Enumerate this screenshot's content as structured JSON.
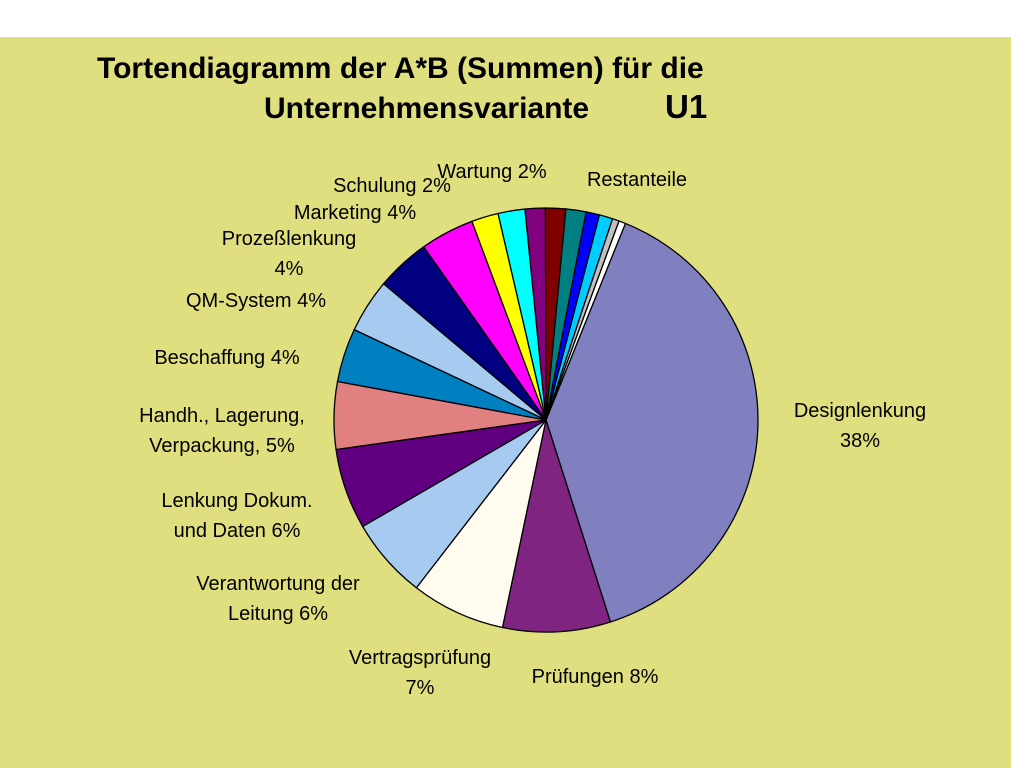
{
  "chart_data": {
    "type": "pie",
    "title": {
      "line1": "Tortendiagramm der A*B (Summen) für die",
      "line2": "Unternehmensvariante",
      "line3": "U1"
    },
    "slices": [
      {
        "name": "Designlenkung",
        "value": 38,
        "label_lines": [
          "Designlenkung",
          "38%"
        ],
        "color": "#8080c0"
      },
      {
        "name": "Prüfungen",
        "value": 8,
        "label_lines": [
          "Prüfungen 8%"
        ],
        "color": "#7f2480"
      },
      {
        "name": "Vertragsprüfung",
        "value": 7,
        "label_lines": [
          "Vertragsprüfung",
          "7%"
        ],
        "color": "#fffbef"
      },
      {
        "name": "Verantwortung der Leitung",
        "value": 6,
        "label_lines": [
          "Verantwortung der",
          "Leitung 6%"
        ],
        "color": "#a6caf0"
      },
      {
        "name": "Lenkung Dokum. und Daten",
        "value": 6,
        "label_lines": [
          "Lenkung Dokum.",
          "und Daten 6%"
        ],
        "color": "#600080"
      },
      {
        "name": "Handh., Lagerung, Verpackung",
        "value": 5,
        "label_lines": [
          "Handh., Lagerung,",
          "Verpackung, 5%"
        ],
        "color": "#e08080"
      },
      {
        "name": "Beschaffung",
        "value": 4,
        "label_lines": [
          "Beschaffung  4%"
        ],
        "color": "#0080c0"
      },
      {
        "name": "QM-System",
        "value": 4,
        "label_lines": [
          "QM-System 4%"
        ],
        "color": "#a6caf0"
      },
      {
        "name": "Prozeßlenkung",
        "value": 4,
        "label_lines": [
          "Prozeßlenkung",
          "4%"
        ],
        "color": "#000080"
      },
      {
        "name": "Marketing",
        "value": 4,
        "label_lines": [
          "Marketing 4%"
        ],
        "color": "#ff00ff"
      },
      {
        "name": "Schulung",
        "value": 2,
        "label_lines": [
          "Schulung  2%"
        ],
        "color": "#ffff00"
      },
      {
        "name": "Wartung",
        "value": 2,
        "label_lines": [
          "Wartung 2%"
        ],
        "color": "#00ffff"
      },
      {
        "name": "",
        "value": 1.5,
        "label_lines": [],
        "color": "#800080"
      },
      {
        "name": "",
        "value": 1.5,
        "label_lines": [],
        "color": "#800000"
      },
      {
        "name": "",
        "value": 1.5,
        "label_lines": [],
        "color": "#008080"
      },
      {
        "name": "",
        "value": 1,
        "label_lines": [],
        "color": "#0000ff"
      },
      {
        "name": "",
        "value": 1,
        "label_lines": [],
        "color": "#00ccff"
      },
      {
        "name": "",
        "value": 0.5,
        "label_lines": [],
        "color": "#c0c0c0"
      },
      {
        "name": "",
        "value": 0.5,
        "label_lines": [],
        "color": "#ffffff"
      }
    ],
    "extra_labels": [
      {
        "text": "Restanteile"
      }
    ],
    "background_color": "#e0df80",
    "legend": "none"
  }
}
